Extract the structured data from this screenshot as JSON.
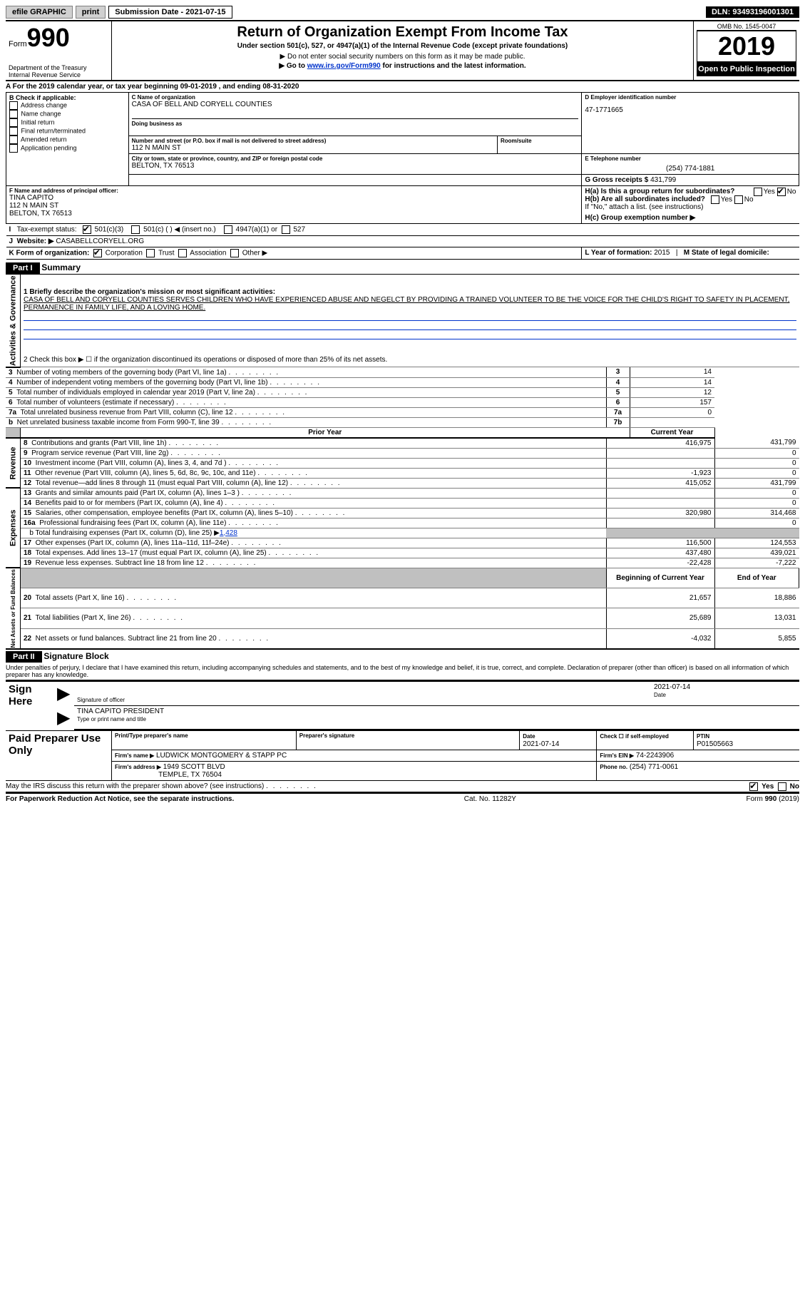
{
  "topbar": {
    "efile": "efile GRAPHIC",
    "print": "print",
    "subdate_label": "Submission Date - 2021-07-15",
    "dln": "DLN: 93493196001301"
  },
  "header": {
    "form_word": "Form",
    "form_num": "990",
    "dept1": "Department of the Treasury",
    "dept2": "Internal Revenue Service",
    "title": "Return of Organization Exempt From Income Tax",
    "subtitle": "Under section 501(c), 527, or 4947(a)(1) of the Internal Revenue Code (except private foundations)",
    "note1": "▶ Do not enter social security numbers on this form as it may be made public.",
    "note2a": "▶ Go to ",
    "note2_link": "www.irs.gov/Form990",
    "note2b": " for instructions and the latest information.",
    "omb": "OMB No. 1545-0047",
    "year": "2019",
    "open": "Open to Public Inspection"
  },
  "lineA": "A For the 2019 calendar year, or tax year beginning 09-01-2019   , and ending 08-31-2020",
  "secB": {
    "title": "B Check if applicable:",
    "items": [
      "Address change",
      "Name change",
      "Initial return",
      "Final return/terminated",
      "Amended return",
      "Application pending"
    ]
  },
  "secC": {
    "name_label": "C Name of organization",
    "name": "CASA OF BELL AND CORYELL COUNTIES",
    "dba_label": "Doing business as",
    "addr_label": "Number and street (or P.O. box if mail is not delivered to street address)",
    "room_label": "Room/suite",
    "addr": "112 N MAIN ST",
    "city_label": "City or town, state or province, country, and ZIP or foreign postal code",
    "city": "BELTON, TX  76513"
  },
  "secD": {
    "label": "D Employer identification number",
    "value": "47-1771665"
  },
  "secE": {
    "label": "E Telephone number",
    "value": "(254) 774-1881"
  },
  "secG": {
    "label": "G Gross receipts $",
    "value": "431,799"
  },
  "secF": {
    "label": "F Name and address of principal officer:",
    "name": "TINA CAPITO",
    "addr1": "112 N MAIN ST",
    "addr2": "BELTON, TX  76513"
  },
  "secH": {
    "a": "H(a)  Is this a group return for subordinates?",
    "b": "H(b)  Are all subordinates included?",
    "note": "If \"No,\" attach a list. (see instructions)",
    "c": "H(c)  Group exemption number ▶"
  },
  "yesno": {
    "yes": "Yes",
    "no": "No"
  },
  "secI": {
    "label": "Tax-exempt status:",
    "c3": "501(c)(3)",
    "c": "501(c) (  ) ◀ (insert no.)",
    "a1": "4947(a)(1) or",
    "s527": "527"
  },
  "secJ": {
    "label": "Website: ▶",
    "value": "CASABELLCORYELL.ORG"
  },
  "secK": {
    "label": "K Form of organization:",
    "corp": "Corporation",
    "trust": "Trust",
    "assoc": "Association",
    "other": "Other ▶"
  },
  "secL": {
    "label": "L Year of formation:",
    "value": "2015"
  },
  "secM": {
    "label": "M State of legal domicile:",
    "value": ""
  },
  "part1": {
    "header": "Part I",
    "title": "Summary"
  },
  "summary": {
    "line1_label": "1 Briefly describe the organization's mission or most significant activities:",
    "line1_text": "CASA OF BELL AND CORYELL COUNTIES SERVES CHILDREN WHO HAVE EXPERIENCED ABUSE AND NEGELCT BY PROVIDING A TRAINED VOLUNTEER TO BE THE VOICE FOR THE CHILD'S RIGHT TO SAFETY IN PLACEMENT, PERMANENCE IN FAMILY LIFE, AND A LOVING HOME.",
    "line2": "2   Check this box ▶ ☐  if the organization discontinued its operations or disposed of more than 25% of its net assets.",
    "rows_gov": [
      {
        "n": "3",
        "t": "Number of voting members of the governing body (Part VI, line 1a)",
        "b": "3",
        "v": "14"
      },
      {
        "n": "4",
        "t": "Number of independent voting members of the governing body (Part VI, line 1b)",
        "b": "4",
        "v": "14"
      },
      {
        "n": "5",
        "t": "Total number of individuals employed in calendar year 2019 (Part V, line 2a)",
        "b": "5",
        "v": "12"
      },
      {
        "n": "6",
        "t": "Total number of volunteers (estimate if necessary)",
        "b": "6",
        "v": "157"
      },
      {
        "n": "7a",
        "t": "Total unrelated business revenue from Part VIII, column (C), line 12",
        "b": "7a",
        "v": "0"
      },
      {
        "n": "b",
        "t": "Net unrelated business taxable income from Form 990-T, line 39",
        "b": "7b",
        "v": ""
      }
    ],
    "col_prior": "Prior Year",
    "col_current": "Current Year",
    "rows_rev": [
      {
        "n": "8",
        "t": "Contributions and grants (Part VIII, line 1h)",
        "p": "416,975",
        "c": "431,799"
      },
      {
        "n": "9",
        "t": "Program service revenue (Part VIII, line 2g)",
        "p": "",
        "c": "0"
      },
      {
        "n": "10",
        "t": "Investment income (Part VIII, column (A), lines 3, 4, and 7d )",
        "p": "",
        "c": "0"
      },
      {
        "n": "11",
        "t": "Other revenue (Part VIII, column (A), lines 5, 6d, 8c, 9c, 10c, and 11e)",
        "p": "-1,923",
        "c": "0"
      },
      {
        "n": "12",
        "t": "Total revenue—add lines 8 through 11 (must equal Part VIII, column (A), line 12)",
        "p": "415,052",
        "c": "431,799"
      }
    ],
    "rows_exp": [
      {
        "n": "13",
        "t": "Grants and similar amounts paid (Part IX, column (A), lines 1–3 )",
        "p": "",
        "c": "0"
      },
      {
        "n": "14",
        "t": "Benefits paid to or for members (Part IX, column (A), line 4)",
        "p": "",
        "c": "0"
      },
      {
        "n": "15",
        "t": "Salaries, other compensation, employee benefits (Part IX, column (A), lines 5–10)",
        "p": "320,980",
        "c": "314,468"
      },
      {
        "n": "16a",
        "t": "Professional fundraising fees (Part IX, column (A), line 11e)",
        "p": "",
        "c": "0"
      }
    ],
    "line_b": "b  Total fundraising expenses (Part IX, column (D), line 25) ▶",
    "line_b_val": "1,428",
    "rows_exp2": [
      {
        "n": "17",
        "t": "Other expenses (Part IX, column (A), lines 11a–11d, 11f–24e)",
        "p": "116,500",
        "c": "124,553"
      },
      {
        "n": "18",
        "t": "Total expenses. Add lines 13–17 (must equal Part IX, column (A), line 25)",
        "p": "437,480",
        "c": "439,021"
      },
      {
        "n": "19",
        "t": "Revenue less expenses. Subtract line 18 from line 12",
        "p": "-22,428",
        "c": "-7,222"
      }
    ],
    "col_begin": "Beginning of Current Year",
    "col_end": "End of Year",
    "rows_net": [
      {
        "n": "20",
        "t": "Total assets (Part X, line 16)",
        "p": "21,657",
        "c": "18,886"
      },
      {
        "n": "21",
        "t": "Total liabilities (Part X, line 26)",
        "p": "25,689",
        "c": "13,031"
      },
      {
        "n": "22",
        "t": "Net assets or fund balances. Subtract line 21 from line 20",
        "p": "-4,032",
        "c": "5,855"
      }
    ]
  },
  "side_labels": {
    "gov": "Activities & Governance",
    "rev": "Revenue",
    "exp": "Expenses",
    "net": "Net Assets or Fund Balances"
  },
  "part2": {
    "header": "Part II",
    "title": "Signature Block"
  },
  "sig_decl": "Under penalties of perjury, I declare that I have examined this return, including accompanying schedules and statements, and to the best of my knowledge and belief, it is true, correct, and complete. Declaration of preparer (other than officer) is based on all information of which preparer has any knowledge.",
  "sign_here": "Sign Here",
  "sig": {
    "date": "2021-07-14",
    "sig_of_officer": "Signature of officer",
    "date_label": "Date",
    "name": "TINA CAPITO  PRESIDENT",
    "name_label": "Type or print name and title"
  },
  "paid": {
    "side": "Paid Preparer Use Only",
    "h1": "Print/Type preparer's name",
    "h2": "Preparer's signature",
    "h3": "Date",
    "h4": "Check ☐ if self-employed",
    "h5": "PTIN",
    "date": "2021-07-14",
    "ptin": "P01505663",
    "firm_label": "Firm's name    ▶",
    "firm": "LUDWICK MONTGOMERY & STAPP PC",
    "ein_label": "Firm's EIN ▶",
    "ein": "74-2243906",
    "addr_label": "Firm's address ▶",
    "addr1": "1949 SCOTT BLVD",
    "addr2": "TEMPLE, TX  76504",
    "phone_label": "Phone no.",
    "phone": "(254) 771-0061"
  },
  "discuss": "May the IRS discuss this return with the preparer shown above? (see instructions)",
  "footer": {
    "left": "For Paperwork Reduction Act Notice, see the separate instructions.",
    "mid": "Cat. No. 11282Y",
    "right": "Form 990 (2019)"
  }
}
